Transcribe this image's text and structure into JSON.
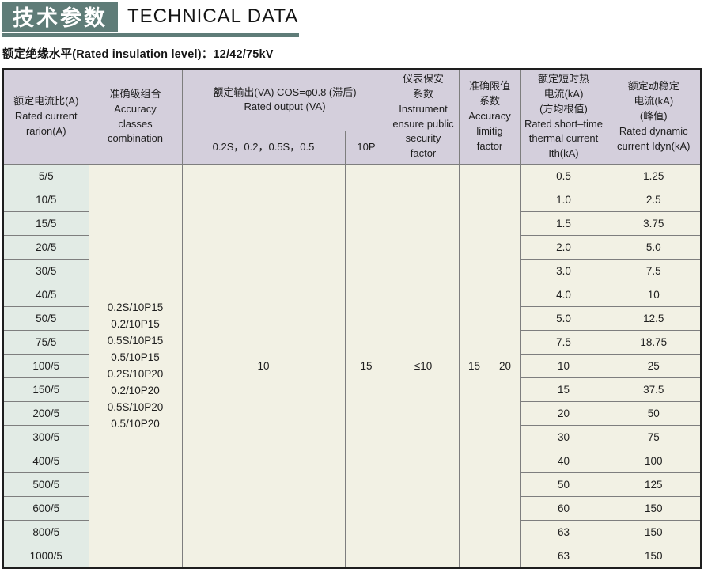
{
  "colors": {
    "accent_teal": "#5f7c78",
    "header_bg": "#d4cfdc",
    "ratio_col_bg": "#e2ebe5",
    "body_bg": "#f2f1e4",
    "grid_line": "#7e7e7e",
    "outer_border": "#1e1e1e"
  },
  "header": {
    "title_cn": "技术参数",
    "title_en": "TECHNICAL DATA",
    "subtitle": "额定绝缘水平(Rated insulation level)：12/42/75kV"
  },
  "table": {
    "col_ratio": {
      "lines": [
        "额定电流比(A)",
        "Rated current",
        "rarion(A)"
      ]
    },
    "col_accuracy": {
      "lines": [
        "准确级组合",
        "Accuracy",
        "classes",
        "combination"
      ]
    },
    "col_output": {
      "title_cn": "额定输出(VA) COS=φ0.8 (滞后)",
      "title_en": "Rated output (VA)",
      "sub_classes": "0.2S，0.2，0.5S，0.5",
      "sub_10p": "10P"
    },
    "col_instrument": {
      "lines": [
        "仪表保安",
        "系数",
        "Instrument",
        "ensure public",
        "security",
        "factor"
      ]
    },
    "col_limit": {
      "lines": [
        "准确限值",
        "系数",
        "Accuracy",
        "limitig",
        "factor"
      ]
    },
    "col_thermal": {
      "lines": [
        "额定短时热",
        "电流(kA)",
        "(方均根值)",
        "Rated short–time",
        "thermal current",
        "Ith(kA)"
      ]
    },
    "col_dynamic": {
      "lines": [
        "额定动稳定",
        "电流(kA)",
        "(峰值)",
        "Rated dynamic",
        "current Idyn(kA)"
      ]
    },
    "merged": {
      "accuracy_combos": [
        "0.2S/10P15",
        "0.2/10P15",
        "0.5S/10P15",
        "0.5/10P15",
        "0.2S/10P20",
        "0.2/10P20",
        "0.5S/10P20",
        "0.5/10P20"
      ],
      "output_va": "10",
      "output_10p": "15",
      "instrument_factor": "≤10",
      "limit_factor_left": "15",
      "limit_factor_right": "20"
    },
    "rows": [
      {
        "ratio": "5/5",
        "thermal": "0.5",
        "dynamic": "1.25"
      },
      {
        "ratio": "10/5",
        "thermal": "1.0",
        "dynamic": "2.5"
      },
      {
        "ratio": "15/5",
        "thermal": "1.5",
        "dynamic": "3.75"
      },
      {
        "ratio": "20/5",
        "thermal": "2.0",
        "dynamic": "5.0"
      },
      {
        "ratio": "30/5",
        "thermal": "3.0",
        "dynamic": "7.5"
      },
      {
        "ratio": "40/5",
        "thermal": "4.0",
        "dynamic": "10"
      },
      {
        "ratio": "50/5",
        "thermal": "5.0",
        "dynamic": "12.5"
      },
      {
        "ratio": "75/5",
        "thermal": "7.5",
        "dynamic": "18.75"
      },
      {
        "ratio": "100/5",
        "thermal": "10",
        "dynamic": "25"
      },
      {
        "ratio": "150/5",
        "thermal": "15",
        "dynamic": "37.5"
      },
      {
        "ratio": "200/5",
        "thermal": "20",
        "dynamic": "50"
      },
      {
        "ratio": "300/5",
        "thermal": "30",
        "dynamic": "75"
      },
      {
        "ratio": "400/5",
        "thermal": "40",
        "dynamic": "100"
      },
      {
        "ratio": "500/5",
        "thermal": "50",
        "dynamic": "125"
      },
      {
        "ratio": "600/5",
        "thermal": "60",
        "dynamic": "150"
      },
      {
        "ratio": "800/5",
        "thermal": "63",
        "dynamic": "150"
      },
      {
        "ratio": "1000/5",
        "thermal": "63",
        "dynamic": "150"
      }
    ]
  }
}
